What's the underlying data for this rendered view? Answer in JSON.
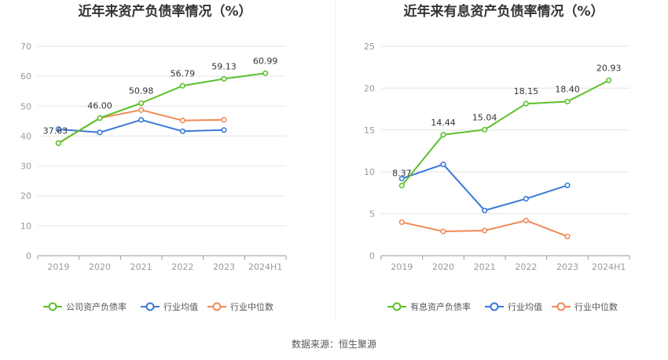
{
  "chart_data": [
    {
      "type": "line",
      "title": "近年来资产负债率情况（%）",
      "categories": [
        "2019",
        "2020",
        "2021",
        "2022",
        "2023",
        "2024H1"
      ],
      "ylim": [
        0,
        70
      ],
      "yticks": [
        0,
        10,
        20,
        30,
        40,
        50,
        60,
        70
      ],
      "grid": true,
      "legend_position": "bottom",
      "series": [
        {
          "name": "公司资产负债率",
          "color": "#5cc12c",
          "values": [
            37.63,
            46.0,
            50.98,
            56.79,
            59.13,
            60.99
          ],
          "labels": [
            "37.63",
            "46.00",
            "50.98",
            "56.79",
            "59.13",
            "60.99"
          ]
        },
        {
          "name": "行业均值",
          "color": "#3a78d8",
          "values": [
            42.3,
            41.2,
            45.4,
            41.6,
            42.0,
            null
          ]
        },
        {
          "name": "行业中位数",
          "color": "#f08a55",
          "values": [
            37.6,
            46.0,
            48.7,
            45.2,
            45.4,
            null
          ]
        }
      ]
    },
    {
      "type": "line",
      "title": "近年来有息资产负债率情况（%）",
      "categories": [
        "2019",
        "2020",
        "2021",
        "2022",
        "2023",
        "2024H1"
      ],
      "ylim": [
        0,
        25
      ],
      "yticks": [
        0,
        5,
        10,
        15,
        20,
        25
      ],
      "grid": true,
      "legend_position": "bottom",
      "series": [
        {
          "name": "有息资产负债率",
          "color": "#5cc12c",
          "values": [
            8.37,
            14.44,
            15.04,
            18.15,
            18.4,
            20.93
          ],
          "labels": [
            "8.37",
            "14.44",
            "15.04",
            "18.15",
            "18.40",
            "20.93"
          ]
        },
        {
          "name": "行业均值",
          "color": "#3a78d8",
          "values": [
            9.2,
            10.9,
            5.4,
            6.8,
            8.4,
            null
          ]
        },
        {
          "name": "行业中位数",
          "color": "#f08a55",
          "values": [
            4.0,
            2.9,
            3.0,
            4.2,
            2.3,
            null
          ]
        }
      ]
    }
  ],
  "footer": {
    "source": "数据来源：恒生聚源"
  }
}
